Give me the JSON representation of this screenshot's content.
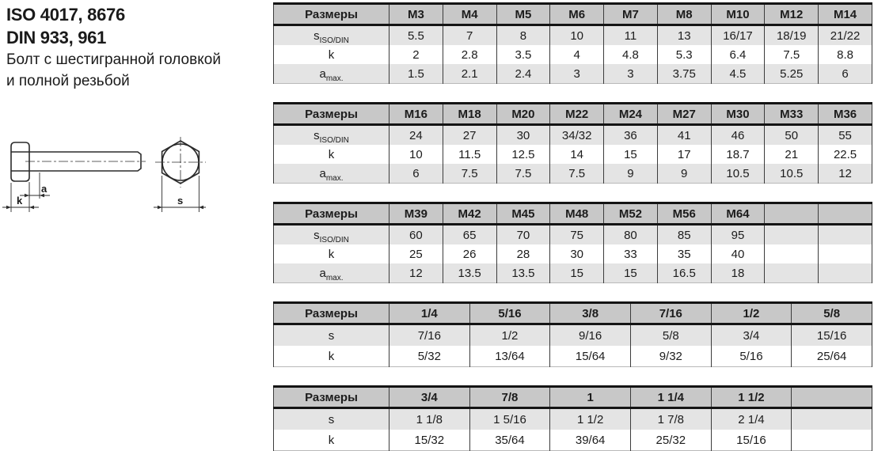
{
  "title": {
    "lines": [
      "ISO 4017, 8676",
      "DIN 933, 961",
      "Болт с шестигранной головкой",
      "и полной резьбой"
    ]
  },
  "drawing": {
    "labels": {
      "a": "a",
      "k": "k",
      "s": "s"
    }
  },
  "tables": [
    {
      "name": "metric-m3-m14",
      "header_label": "Размеры",
      "columns": [
        "M3",
        "M4",
        "M5",
        "M6",
        "M7",
        "M8",
        "M10",
        "M12",
        "M14"
      ],
      "rows": [
        {
          "base": "s",
          "sub": "ISO/DIN",
          "values": [
            "5.5",
            "7",
            "8",
            "10",
            "11",
            "13",
            "16/17",
            "18/19",
            "21/22"
          ]
        },
        {
          "base": "k",
          "sub": "",
          "values": [
            "2",
            "2.8",
            "3.5",
            "4",
            "4.8",
            "5.3",
            "6.4",
            "7.5",
            "8.8"
          ]
        },
        {
          "base": "a",
          "sub": "max.",
          "values": [
            "1.5",
            "2.1",
            "2.4",
            "3",
            "3",
            "3.75",
            "4.5",
            "5.25",
            "6"
          ]
        }
      ]
    },
    {
      "name": "metric-m16-m36",
      "header_label": "Размеры",
      "columns": [
        "M16",
        "M18",
        "M20",
        "M22",
        "M24",
        "M27",
        "M30",
        "M33",
        "M36"
      ],
      "rows": [
        {
          "base": "s",
          "sub": "ISO/DIN",
          "values": [
            "24",
            "27",
            "30",
            "34/32",
            "36",
            "41",
            "46",
            "50",
            "55"
          ]
        },
        {
          "base": "k",
          "sub": "",
          "values": [
            "10",
            "11.5",
            "12.5",
            "14",
            "15",
            "17",
            "18.7",
            "21",
            "22.5"
          ]
        },
        {
          "base": "a",
          "sub": "max.",
          "values": [
            "6",
            "7.5",
            "7.5",
            "7.5",
            "9",
            "9",
            "10.5",
            "10.5",
            "12"
          ]
        }
      ]
    },
    {
      "name": "metric-m39-m64",
      "header_label": "Размеры",
      "columns": [
        "M39",
        "M42",
        "M45",
        "M48",
        "M52",
        "M56",
        "M64",
        "",
        ""
      ],
      "rows": [
        {
          "base": "s",
          "sub": "ISO/DIN",
          "values": [
            "60",
            "65",
            "70",
            "75",
            "80",
            "85",
            "95",
            "",
            ""
          ]
        },
        {
          "base": "k",
          "sub": "",
          "values": [
            "25",
            "26",
            "28",
            "30",
            "33",
            "35",
            "40",
            "",
            ""
          ]
        },
        {
          "base": "a",
          "sub": "max.",
          "values": [
            "12",
            "13.5",
            "13.5",
            "15",
            "15",
            "16.5",
            "18",
            "",
            ""
          ]
        }
      ]
    },
    {
      "name": "imperial-quarter-to-5-8",
      "header_label": "Размеры",
      "columns": [
        "1/4",
        "5/16",
        "3/8",
        "7/16",
        "1/2",
        "5/8"
      ],
      "rows": [
        {
          "base": "s",
          "sub": "",
          "values": [
            "7/16",
            "1/2",
            "9/16",
            "5/8",
            "3/4",
            "15/16"
          ]
        },
        {
          "base": "k",
          "sub": "",
          "values": [
            "5/32",
            "13/64",
            "15/64",
            "9/32",
            "5/16",
            "25/64"
          ]
        }
      ]
    },
    {
      "name": "imperial-3-4-to-1-1-2",
      "header_label": "Размеры",
      "columns": [
        "3/4",
        "7/8",
        "1",
        "1 1/4",
        "1 1/2",
        ""
      ],
      "rows": [
        {
          "base": "s",
          "sub": "",
          "values": [
            "1 1/8",
            "1 5/16",
            "1 1/2",
            "1 7/8",
            "2 1/4",
            ""
          ]
        },
        {
          "base": "k",
          "sub": "",
          "values": [
            "15/32",
            "35/64",
            "39/64",
            "25/32",
            "15/16",
            ""
          ]
        }
      ]
    }
  ]
}
